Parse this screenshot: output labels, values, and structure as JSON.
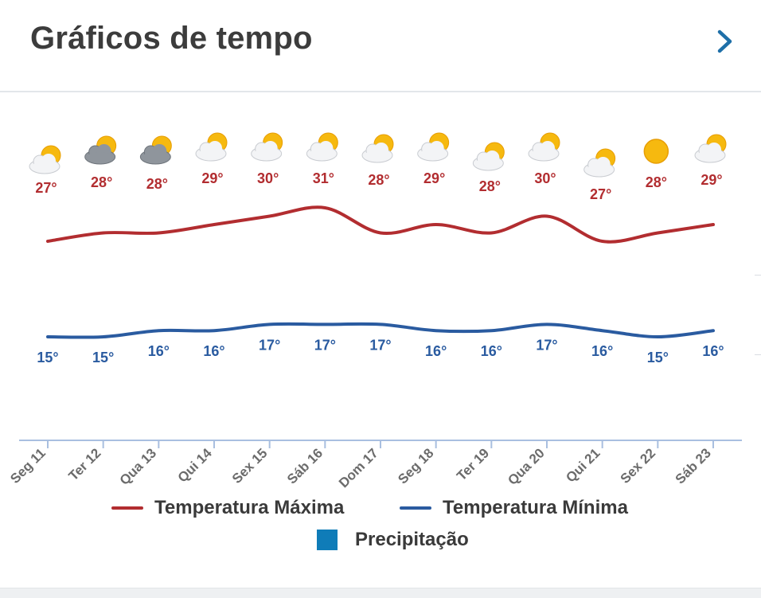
{
  "header": {
    "title": "Gráficos de tempo",
    "more_icon": "chevron-right-icon"
  },
  "colors": {
    "max": "#b22d30",
    "min": "#2a5ba0",
    "precip": "#0f7cb8",
    "axis": "#a9bfe0"
  },
  "legend": {
    "max_label": "Temperatura Máxima",
    "min_label": "Temperatura Mínima",
    "precip_label": "Precipitação"
  },
  "chart_data": {
    "type": "line",
    "categories": [
      "Seg 11",
      "Ter 12",
      "Qua 13",
      "Qui 14",
      "Sex 15",
      "Sáb 16",
      "Dom 17",
      "Seg 18",
      "Ter 19",
      "Qua 20",
      "Qui 21",
      "Sex 22",
      "Sáb 23"
    ],
    "icons": [
      "partly-cloudy",
      "cloudy",
      "cloudy",
      "partly-cloudy",
      "partly-cloudy",
      "partly-cloudy",
      "partly-cloudy",
      "partly-cloudy",
      "partly-cloudy",
      "partly-cloudy",
      "partly-cloudy",
      "sunny",
      "partly-cloudy"
    ],
    "series": [
      {
        "name": "Temperatura Máxima",
        "values": [
          27,
          28,
          28,
          29,
          30,
          31,
          28,
          29,
          28,
          30,
          27,
          28,
          29
        ]
      },
      {
        "name": "Temperatura Mínima",
        "values": [
          15,
          15,
          16,
          16,
          17,
          17,
          17,
          16,
          16,
          17,
          16,
          15,
          16
        ]
      },
      {
        "name": "Precipitação",
        "values": [
          0,
          0,
          0,
          0,
          0,
          0,
          0,
          0,
          0,
          0,
          0,
          0,
          0
        ]
      }
    ],
    "unit": "°"
  }
}
